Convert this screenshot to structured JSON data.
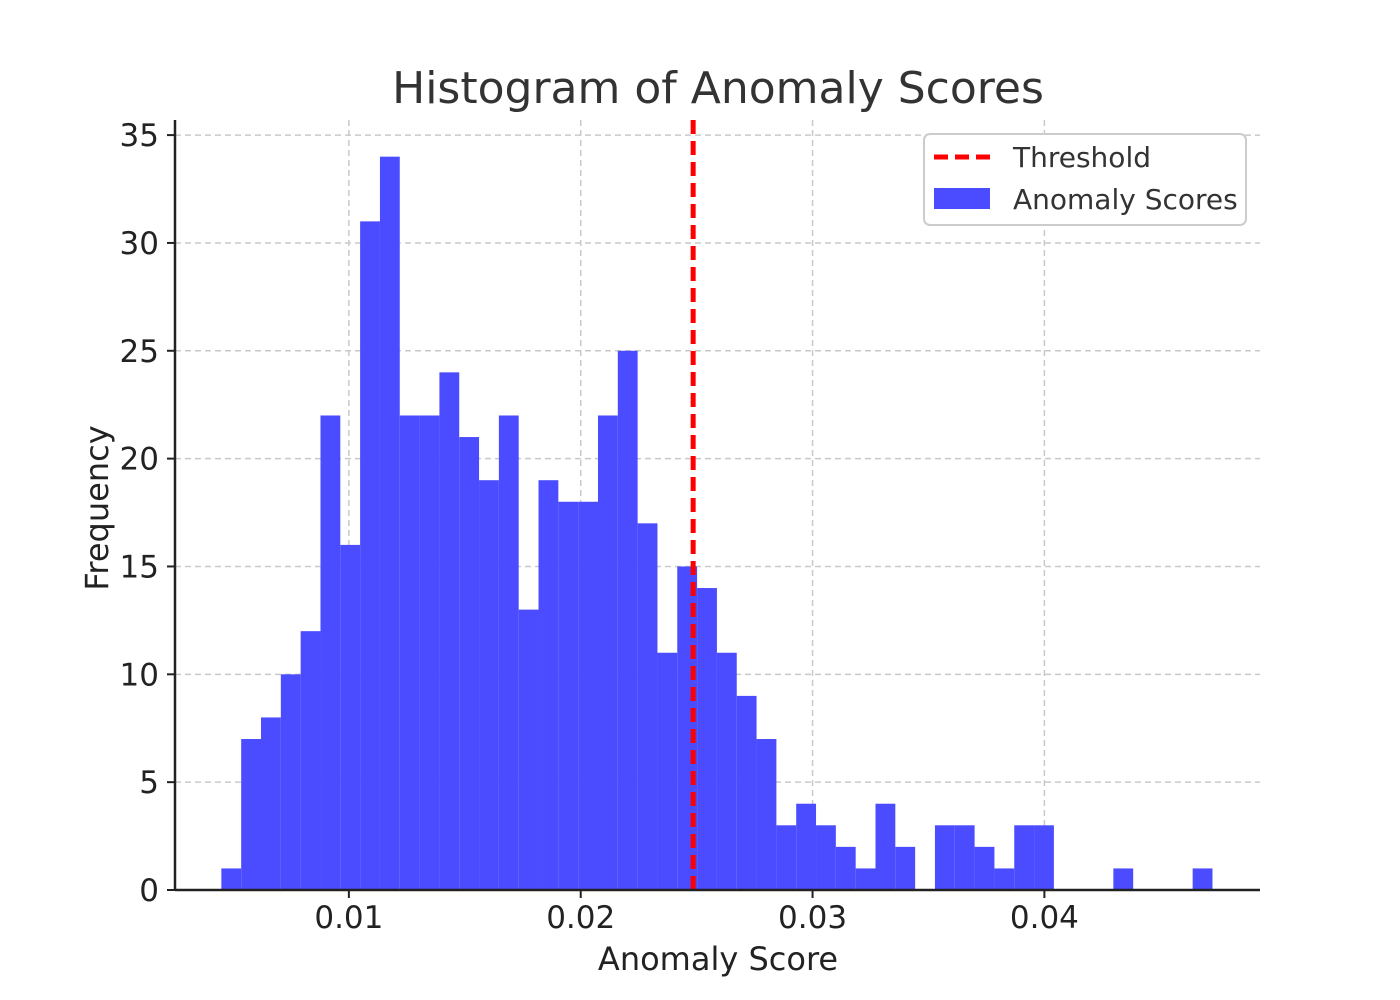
{
  "chart_data": {
    "type": "bar",
    "title": "Histogram of Anomaly Scores",
    "xlabel": "Anomaly Score",
    "ylabel": "Frequency",
    "xlim": [
      0.0025,
      0.0493
    ],
    "ylim": [
      0,
      35.7
    ],
    "bin_start": 0.0045,
    "bin_width": 0.000855,
    "values": [
      1,
      7,
      8,
      10,
      12,
      22,
      16,
      31,
      34,
      22,
      22,
      24,
      21,
      19,
      22,
      13,
      19,
      18,
      18,
      22,
      25,
      17,
      11,
      15,
      14,
      11,
      9,
      7,
      3,
      4,
      3,
      2,
      1,
      4,
      2,
      0,
      3,
      3,
      2,
      1,
      3,
      3,
      0,
      0,
      0,
      1,
      0,
      0,
      0,
      1
    ],
    "xticks": [
      0.01,
      0.02,
      0.03,
      0.04
    ],
    "xtick_labels": [
      "0.01",
      "0.02",
      "0.03",
      "0.04"
    ],
    "yticks": [
      0,
      5,
      10,
      15,
      20,
      25,
      30,
      35
    ],
    "ytick_labels": [
      "0",
      "5",
      "10",
      "15",
      "20",
      "25",
      "30",
      "35"
    ],
    "threshold": 0.02485,
    "grid": true,
    "legend_position": "top-right",
    "series": [
      {
        "name": "Threshold",
        "kind": "vline",
        "color": "#ff0000",
        "style": "dashed"
      },
      {
        "name": "Anomaly Scores",
        "kind": "histogram",
        "color": "#4b4bff"
      }
    ]
  }
}
